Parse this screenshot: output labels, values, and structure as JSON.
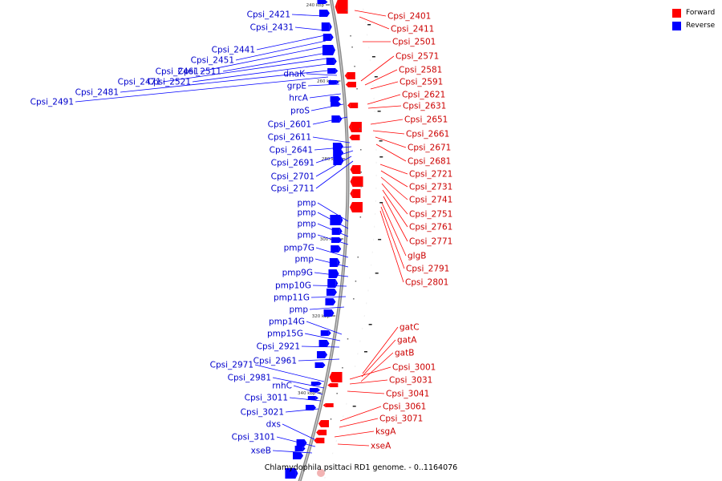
{
  "legend": {
    "forward_label": "Forward",
    "reverse_label": "Reverse",
    "forward_color": "#ff0000",
    "reverse_color": "#0000ff"
  },
  "caption": "Chlamydophila psittaci RD1 genome. - 0..1164076",
  "tick_labels": [
    "240 kbp",
    "260 kbp",
    "280 kbp",
    "300 kbp",
    "320 kbp",
    "340 kbp"
  ],
  "reverse_labels": [
    "Cpsi_2421",
    "Cpsi_2431",
    "Cpsi_2441",
    "Cpsi_2451",
    "Cpsi_2461",
    "Cpsi_2511",
    "Cpsi_2471",
    "Cpsi_2521",
    "Cpsi_2481",
    "Cpsi_2491",
    "dnaK",
    "grpE",
    "hrcA",
    "proS",
    "Cpsi_2601",
    "Cpsi_2611",
    "Cpsi_2641",
    "Cpsi_2691",
    "Cpsi_2701",
    "Cpsi_2711",
    "pmp",
    "pmp",
    "pmp",
    "pmp",
    "pmp7G",
    "pmp",
    "pmp9G",
    "pmp10G",
    "pmp11G",
    "pmp",
    "pmp14G",
    "pmp15G",
    "Cpsi_2921",
    "Cpsi_2961",
    "Cpsi_2971",
    "Cpsi_2981",
    "rnhC",
    "Cpsi_3011",
    "Cpsi_3021",
    "dxs",
    "Cpsi_3101",
    "xseB"
  ],
  "forward_labels": [
    "Cpsi_2401",
    "Cpsi_2411",
    "Cpsi_2501",
    "Cpsi_2571",
    "Cpsi_2581",
    "Cpsi_2591",
    "Cpsi_2621",
    "Cpsi_2631",
    "Cpsi_2651",
    "Cpsi_2661",
    "Cpsi_2671",
    "Cpsi_2681",
    "Cpsi_2721",
    "Cpsi_2731",
    "Cpsi_2741",
    "Cpsi_2751",
    "Cpsi_2761",
    "Cpsi_2771",
    "glgB",
    "Cpsi_2791",
    "Cpsi_2801",
    "gatC",
    "gatA",
    "gatB",
    "Cpsi_3001",
    "Cpsi_3031",
    "Cpsi_3041",
    "Cpsi_3061",
    "Cpsi_3071",
    "ksgA",
    "xseA"
  ]
}
